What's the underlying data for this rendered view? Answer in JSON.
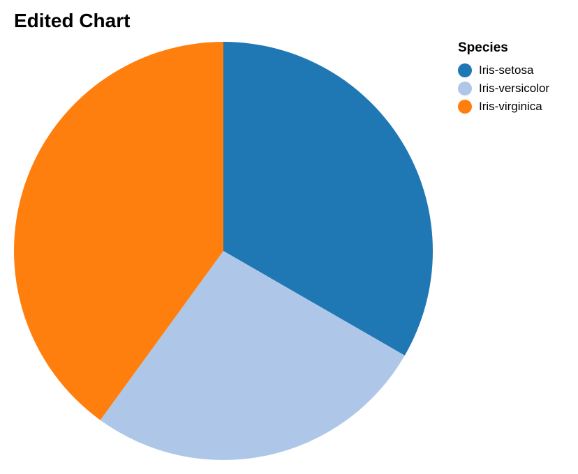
{
  "chart_data": {
    "type": "pie",
    "title": "Edited Chart",
    "legend": {
      "title": "Species",
      "placement": "top-right"
    },
    "start_angle_deg": 0,
    "direction": "clockwise",
    "slices": [
      {
        "label": "Iris-setosa",
        "value": 50,
        "color": "#1f77b4"
      },
      {
        "label": "Iris-versicolor",
        "value": 40,
        "color": "#aec7e8"
      },
      {
        "label": "Iris-virginica",
        "value": 60,
        "color": "#ff7f0e"
      }
    ]
  }
}
